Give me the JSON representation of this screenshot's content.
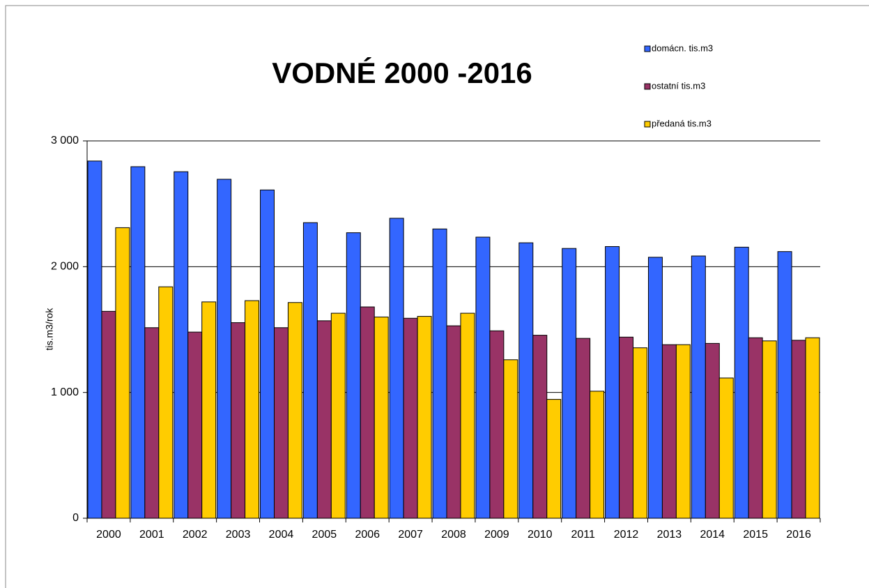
{
  "chart_data": {
    "type": "bar",
    "title": "VODNÉ 2000 -2016",
    "y_label": "tis.m3/rok",
    "categories": [
      "2000",
      "2001",
      "2002",
      "2003",
      "2004",
      "2005",
      "2006",
      "2007",
      "2008",
      "2009",
      "2010",
      "2011",
      "2012",
      "2013",
      "2014",
      "2015",
      "2016"
    ],
    "series": [
      {
        "name": "domácn. tis.m3",
        "color": "#3366ff",
        "values": [
          2840,
          2795,
          2755,
          2695,
          2610,
          2350,
          2270,
          2385,
          2300,
          2235,
          2190,
          2145,
          2160,
          2075,
          2085,
          2155,
          2120
        ]
      },
      {
        "name": "ostatní tis.m3",
        "color": "#993366",
        "values": [
          1645,
          1515,
          1480,
          1555,
          1515,
          1570,
          1680,
          1590,
          1530,
          1490,
          1455,
          1430,
          1440,
          1380,
          1390,
          1435,
          1415
        ]
      },
      {
        "name": "předaná tis.m3",
        "color": "#ffcc00",
        "values": [
          2310,
          1840,
          1720,
          1730,
          1715,
          1630,
          1600,
          1605,
          1630,
          1260,
          945,
          1010,
          1355,
          1380,
          1115,
          1410,
          1435
        ]
      }
    ],
    "ylim": [
      0,
      3000
    ],
    "yticks": [
      {
        "value": 0,
        "label": "0"
      },
      {
        "value": 1000,
        "label": "1 000"
      },
      {
        "value": 2000,
        "label": "2 000"
      },
      {
        "value": 3000,
        "label": "3 000"
      }
    ],
    "grid": true,
    "legend": "top-right"
  }
}
